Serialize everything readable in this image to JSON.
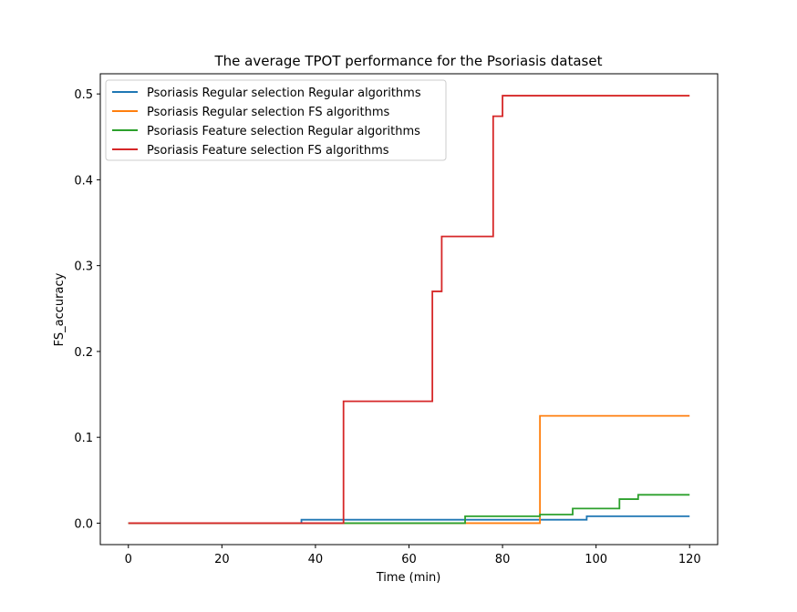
{
  "chart_data": {
    "type": "line",
    "title": "The average TPOT performance for the Psoriasis dataset",
    "xlabel": "Time (min)",
    "ylabel": "FS_accuracy",
    "xlim": [
      -6,
      126
    ],
    "ylim": [
      -0.025,
      0.5235
    ],
    "xticks": [
      0,
      20,
      40,
      60,
      80,
      100,
      120
    ],
    "xtick_labels": [
      "0",
      "20",
      "40",
      "60",
      "80",
      "100",
      "120"
    ],
    "yticks": [
      0.0,
      0.1,
      0.2,
      0.3,
      0.4,
      0.5
    ],
    "ytick_labels": [
      "0.0",
      "0.1",
      "0.2",
      "0.3",
      "0.4",
      "0.5"
    ],
    "grid": false,
    "legend_position": "upper-left",
    "step": "post",
    "series": [
      {
        "name": "Psoriasis Regular selection Regular algorithms",
        "color": "#1f77b4",
        "x": [
          0,
          37,
          98,
          120
        ],
        "y": [
          0.0,
          0.004,
          0.008,
          0.008
        ]
      },
      {
        "name": "Psoriasis Regular selection FS algorithms",
        "color": "#ff7f0e",
        "x": [
          0,
          88,
          120
        ],
        "y": [
          0.0,
          0.125,
          0.125
        ]
      },
      {
        "name": "Psoriasis Feature selection Regular algorithms",
        "color": "#2ca02c",
        "x": [
          0,
          72,
          88,
          95,
          105,
          109,
          120
        ],
        "y": [
          0.0,
          0.008,
          0.01,
          0.017,
          0.028,
          0.033,
          0.033
        ]
      },
      {
        "name": "Psoriasis Feature selection FS algorithms",
        "color": "#d62728",
        "x": [
          0,
          46,
          65,
          67,
          78,
          80,
          120
        ],
        "y": [
          0.0,
          0.142,
          0.27,
          0.334,
          0.474,
          0.498,
          0.498
        ]
      }
    ]
  }
}
